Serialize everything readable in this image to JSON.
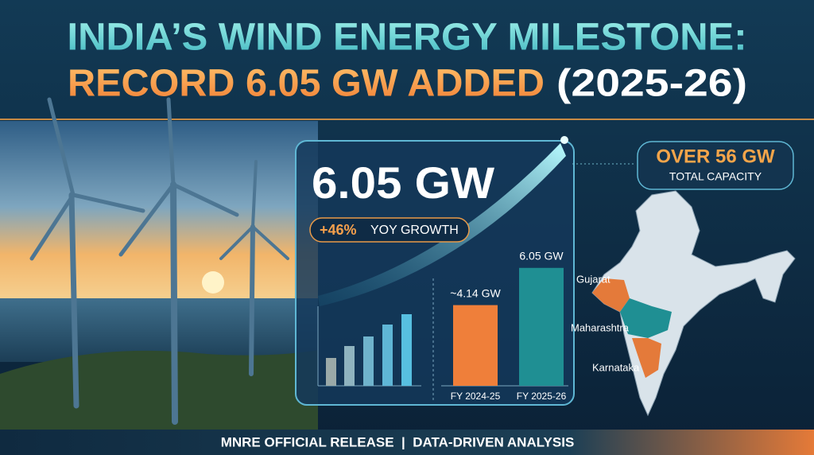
{
  "header": {
    "line1": "INDIA’S WIND ENERGY MILESTONE:",
    "line2": "RECORD 6.05 GW ADDED",
    "line2_year": "(2025-26)"
  },
  "headline": {
    "value": "6.05 GW",
    "growth": "+46%",
    "growth_label": "YOY GROWTH"
  },
  "callout": {
    "value": "OVER 56 GW",
    "label": "TOTAL CAPACITY"
  },
  "chart_data": {
    "type": "bar",
    "categories": [
      "FY 2024-25",
      "FY 2025-26"
    ],
    "values": [
      4.14,
      6.05
    ],
    "value_labels": [
      "~4.14 GW",
      "6.05 GW"
    ],
    "colors": [
      "#ef7f3a",
      "#1f8f93"
    ]
  },
  "map": {
    "labels": [
      "Gujarat",
      "Maharashtra",
      "Karnataka"
    ]
  },
  "footer": {
    "text": "MNRE OFFICIAL RELEASE  |  DATA-DRIVEN ANALYSIS"
  }
}
